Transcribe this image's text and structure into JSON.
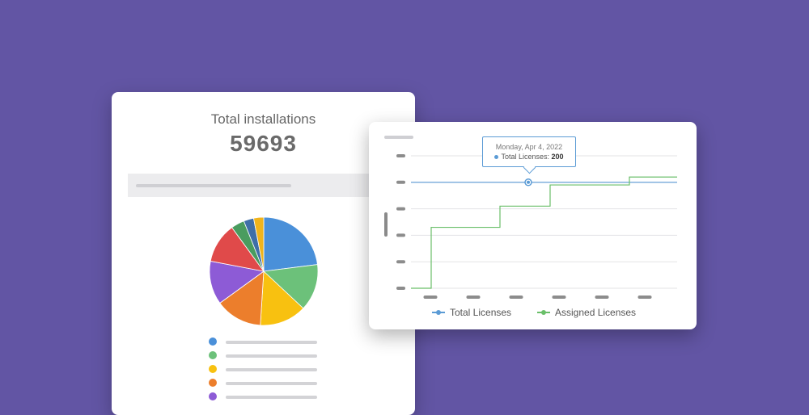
{
  "installations": {
    "title": "Total installations",
    "total": "59693"
  },
  "colors": {
    "background": "#6255a4",
    "total_licenses": "#5b9bd5",
    "assigned_licenses": "#6abf69"
  },
  "pie_chart": {
    "type": "pie",
    "slices": [
      {
        "color": "#4a90d9",
        "value": 23
      },
      {
        "color": "#6cc17a",
        "value": 14
      },
      {
        "color": "#f8c110",
        "value": 14
      },
      {
        "color": "#ec7e2c",
        "value": 14
      },
      {
        "color": "#8d5bd6",
        "value": 13
      },
      {
        "color": "#e04a4a",
        "value": 12
      },
      {
        "color": "#4a9c5f",
        "value": 4
      },
      {
        "color": "#3f6fa8",
        "value": 3
      },
      {
        "color": "#f0b41c",
        "value": 3
      }
    ]
  },
  "pie_legend": [
    "#4a90d9",
    "#6cc17a",
    "#f8c110",
    "#ec7e2c",
    "#8d5bd6"
  ],
  "chart_data": {
    "type": "line",
    "x": [
      0,
      1,
      2,
      3,
      4,
      5,
      6
    ],
    "y_levels": 6,
    "series": [
      {
        "name": "Total Licenses",
        "color": "#5b9bd5",
        "values": [
          200,
          200,
          200,
          200,
          200,
          200,
          200
        ]
      },
      {
        "name": "Assigned Licenses",
        "color": "#6abf69",
        "values": [
          0,
          50,
          115,
          155,
          195,
          210,
          210
        ]
      }
    ],
    "ylim": [
      0,
      250
    ],
    "grid": true,
    "legend": "bottom",
    "tooltip": {
      "date": "Monday, Apr 4, 2022",
      "label": "Total Licenses:",
      "value": "200"
    }
  }
}
